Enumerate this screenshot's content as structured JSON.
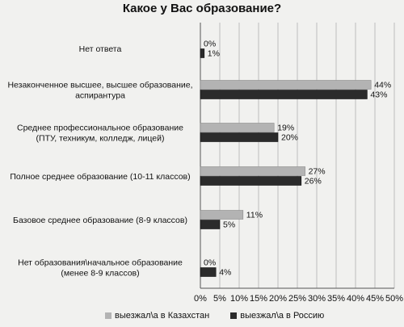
{
  "chart_data": {
    "type": "bar",
    "orientation": "horizontal",
    "title": "Какое у Вас образование?",
    "categories": [
      [
        "Нет ответа"
      ],
      [
        "Незаконченное высшее, высшее образование,",
        "аспирантура"
      ],
      [
        "Среднее профессиональное образование",
        "(ПТУ, техникум, колледж, лицей)"
      ],
      [
        "Полное среднее образование (10-11 классов)"
      ],
      [
        "Базовое среднее образование (8-9 классов)"
      ],
      [
        "Нет образования\\начальное образование",
        "(менее 8-9 классов)"
      ]
    ],
    "series": [
      {
        "name": "выезжал\\а в Казахстан",
        "color": "#b3b3b3",
        "values": [
          0,
          44,
          19,
          27,
          11,
          0
        ]
      },
      {
        "name": "выезжал\\а в Россию",
        "color": "#2b2b2b",
        "values": [
          1,
          43,
          20,
          26,
          5,
          4
        ]
      }
    ],
    "value_labels": [
      [
        "0%",
        "44%",
        "19%",
        "27%",
        "11%",
        "0%"
      ],
      [
        "1%",
        "43%",
        "20%",
        "26%",
        "5%",
        "4%"
      ]
    ],
    "x_ticks": [
      "0%",
      "5%",
      "10%",
      "15%",
      "20%",
      "25%",
      "30%",
      "35%",
      "40%",
      "45%",
      "50%"
    ],
    "xlim": [
      0,
      50
    ],
    "grid": true,
    "legend_position": "bottom"
  }
}
